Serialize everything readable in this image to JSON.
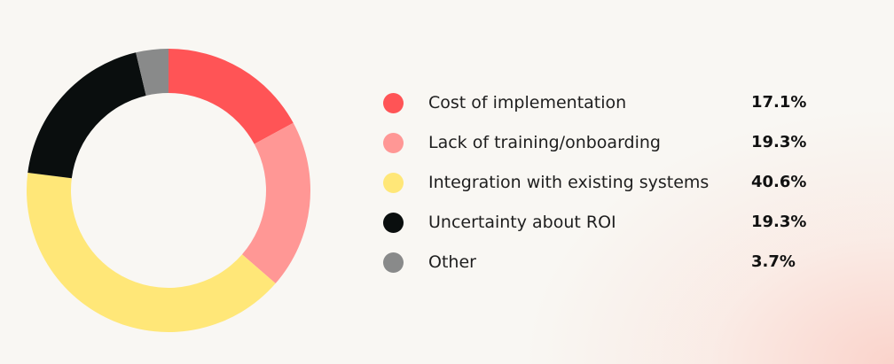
{
  "chart_data": {
    "type": "pie",
    "title": "",
    "donut": true,
    "categories": [
      "Cost of implementation",
      "Lack of training/onboarding",
      "Integration with existing systems",
      "Uncertainty about ROI",
      "Other"
    ],
    "values": [
      17.1,
      19.3,
      40.6,
      19.3,
      3.7
    ],
    "value_labels": [
      "17.1%",
      "19.3%",
      "40.6%",
      "19.3%",
      "3.7%"
    ],
    "colors": [
      "#ff5456",
      "#ff9795",
      "#ffe778",
      "#0a0e0e",
      "#898a8a"
    ],
    "legend_position": "right"
  }
}
